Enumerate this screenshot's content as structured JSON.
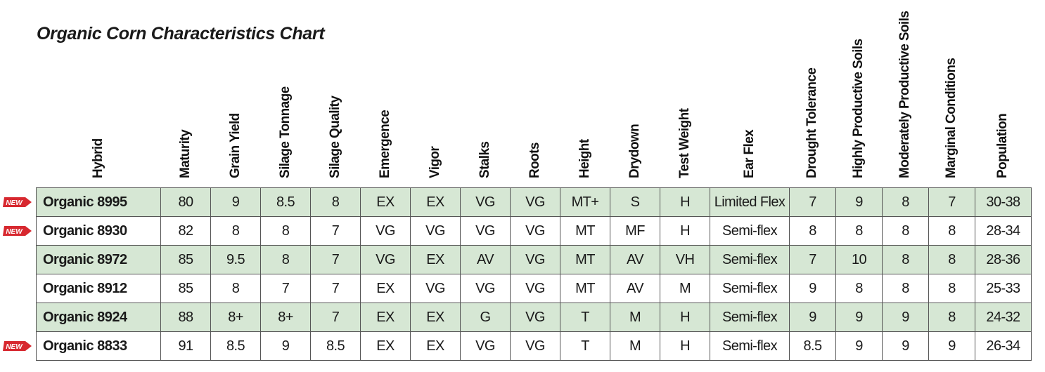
{
  "title": "Organic Corn Characteristics Chart",
  "chart_data": {
    "type": "table",
    "title": "Organic Corn Characteristics Chart",
    "columns": [
      "Hybrid",
      "Maturity",
      "Grain Yield",
      "Silage Tonnage",
      "Silage Quality",
      "Emergence",
      "Vigor",
      "Stalks",
      "Roots",
      "Height",
      "Drydown",
      "Test Weight",
      "Ear Flex",
      "Drought Tolerance",
      "Highly Productive Soils",
      "Moderately Productive Soils",
      "Marginal Conditions",
      "Population"
    ],
    "rows": [
      {
        "new": true,
        "cells": [
          "Organic 8995",
          "80",
          "9",
          "8.5",
          "8",
          "EX",
          "EX",
          "VG",
          "VG",
          "MT+",
          "S",
          "H",
          "Limited Flex",
          "7",
          "9",
          "8",
          "7",
          "30-38"
        ]
      },
      {
        "new": true,
        "cells": [
          "Organic 8930",
          "82",
          "8",
          "8",
          "7",
          "VG",
          "VG",
          "VG",
          "VG",
          "MT",
          "MF",
          "H",
          "Semi-flex",
          "8",
          "8",
          "8",
          "8",
          "28-34"
        ]
      },
      {
        "new": false,
        "cells": [
          "Organic 8972",
          "85",
          "9.5",
          "8",
          "7",
          "VG",
          "EX",
          "AV",
          "VG",
          "MT",
          "AV",
          "VH",
          "Semi-flex",
          "7",
          "10",
          "8",
          "8",
          "28-36"
        ]
      },
      {
        "new": false,
        "cells": [
          "Organic 8912",
          "85",
          "8",
          "7",
          "7",
          "EX",
          "VG",
          "VG",
          "VG",
          "MT",
          "AV",
          "M",
          "Semi-flex",
          "9",
          "8",
          "8",
          "8",
          "25-33"
        ]
      },
      {
        "new": false,
        "cells": [
          "Organic 8924",
          "88",
          "8+",
          "8+",
          "7",
          "EX",
          "EX",
          "G",
          "VG",
          "T",
          "M",
          "H",
          "Semi-flex",
          "9",
          "9",
          "9",
          "8",
          "24-32"
        ]
      },
      {
        "new": true,
        "cells": [
          "Organic 8833",
          "91",
          "8.5",
          "9",
          "8.5",
          "EX",
          "EX",
          "VG",
          "VG",
          "T",
          "M",
          "H",
          "Semi-flex",
          "8.5",
          "9",
          "9",
          "9",
          "26-34"
        ]
      }
    ]
  },
  "new_badge_label": "NEW",
  "colors": {
    "row_green": "#d6e7d4",
    "badge_red": "#d7282f",
    "border": "#555555"
  }
}
